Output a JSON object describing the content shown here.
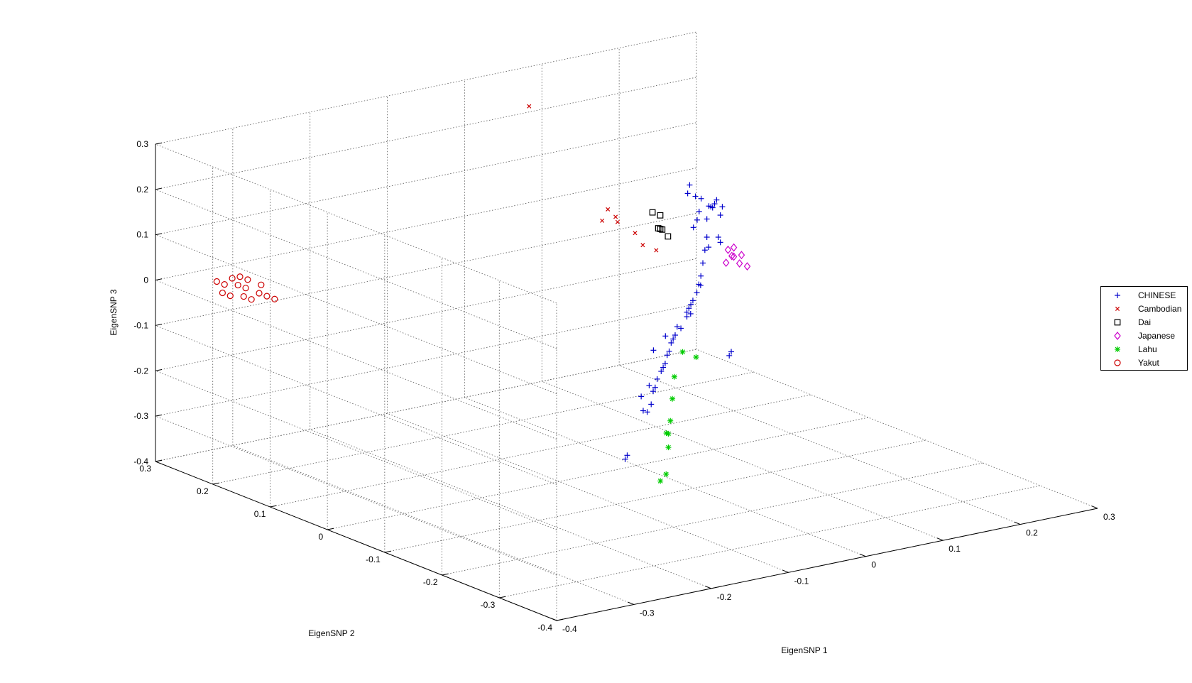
{
  "chart_data": {
    "type": "scatter",
    "title": "",
    "xlabel": "EigenSNP 1",
    "ylabel": "EigenSNP 2",
    "zlabel": "EigenSNP 3",
    "xlim": [
      -0.4,
      0.3
    ],
    "ylim": [
      -0.4,
      0.3
    ],
    "zlim": [
      -0.4,
      0.3
    ],
    "xticks": [
      "-0.4",
      "-0.3",
      "-0.2",
      "-0.1",
      "0",
      "0.1",
      "0.2",
      "0.3"
    ],
    "yticks": [
      "-0.4",
      "-0.3",
      "-0.2",
      "-0.1",
      "0",
      "0.1",
      "0.2",
      "0.3"
    ],
    "zticks": [
      "-0.4",
      "-0.3",
      "-0.2",
      "-0.1",
      "0",
      "0.1",
      "0.2",
      "0.3"
    ],
    "grid": true,
    "legend_position": "outside-right",
    "series": [
      {
        "name": "CHINESE",
        "marker": "+",
        "color": "#0000CC",
        "points": [
          [
            0.17,
            0.12,
            0.04
          ],
          [
            0.18,
            0.11,
            0.05
          ],
          [
            0.18,
            0.13,
            0.06
          ],
          [
            0.19,
            0.12,
            0.05
          ],
          [
            0.19,
            0.13,
            0.04
          ],
          [
            0.17,
            0.14,
            0.07
          ],
          [
            0.18,
            0.14,
            0.06
          ],
          [
            0.2,
            0.13,
            0.05
          ],
          [
            0.2,
            0.12,
            0.04
          ],
          [
            0.19,
            0.11,
            0.03
          ],
          [
            0.18,
            0.12,
            0.02
          ],
          [
            0.2,
            0.14,
            0.03
          ],
          [
            0.17,
            0.13,
            0.0
          ],
          [
            0.18,
            0.12,
            -0.02
          ],
          [
            0.19,
            0.11,
            -0.03
          ],
          [
            0.17,
            0.11,
            -0.04
          ],
          [
            0.16,
            0.1,
            -0.06
          ],
          [
            0.15,
            0.09,
            -0.08
          ],
          [
            0.14,
            0.08,
            -0.09
          ],
          [
            0.13,
            0.07,
            -0.1
          ],
          [
            0.11,
            0.05,
            -0.1
          ],
          [
            0.1,
            0.04,
            -0.1
          ],
          [
            0.09,
            0.03,
            -0.1
          ],
          [
            0.08,
            0.02,
            -0.11
          ],
          [
            0.06,
            0.01,
            -0.12
          ],
          [
            0.05,
            0.0,
            -0.13
          ],
          [
            0.04,
            -0.01,
            -0.13
          ],
          [
            0.03,
            -0.02,
            -0.13
          ],
          [
            0.02,
            -0.03,
            -0.14
          ],
          [
            0.01,
            -0.04,
            -0.14
          ],
          [
            0.0,
            -0.05,
            -0.15
          ],
          [
            -0.01,
            -0.06,
            -0.15
          ],
          [
            -0.02,
            -0.07,
            -0.15
          ],
          [
            -0.04,
            -0.09,
            -0.15
          ],
          [
            -0.05,
            -0.1,
            -0.16
          ],
          [
            -0.06,
            -0.11,
            -0.16
          ],
          [
            0.07,
            0.0,
            -0.09
          ],
          [
            0.05,
            -0.01,
            -0.11
          ],
          [
            0.12,
            0.05,
            -0.07
          ],
          [
            0.16,
            0.09,
            -0.02
          ],
          [
            0.18,
            0.1,
            -0.01
          ],
          [
            -0.07,
            -0.12,
            -0.18
          ],
          [
            -0.09,
            -0.14,
            -0.18
          ],
          [
            -0.11,
            -0.16,
            -0.16
          ],
          [
            -0.12,
            -0.17,
            -0.12
          ],
          [
            -0.08,
            -0.13,
            -0.13
          ],
          [
            0.03,
            -0.01,
            -0.12
          ],
          [
            -0.03,
            -0.07,
            -0.1
          ],
          [
            -0.2,
            -0.25,
            -0.19
          ],
          [
            -0.19,
            -0.24,
            -0.19
          ],
          [
            0.12,
            0.0,
            -0.2
          ],
          [
            0.13,
            0.01,
            -0.2
          ],
          [
            0.08,
            0.02,
            -0.1
          ],
          [
            0.16,
            0.11,
            0.03
          ],
          [
            0.18,
            0.15,
            0.08
          ]
        ]
      },
      {
        "name": "Cambodian",
        "marker": "x",
        "color": "#CC0000",
        "points": [
          [
            -0.05,
            0.12,
            0.35
          ],
          [
            0.0,
            0.05,
            0.14
          ],
          [
            0.01,
            0.05,
            0.12
          ],
          [
            0.0,
            0.06,
            0.11
          ],
          [
            0.02,
            0.06,
            0.1
          ],
          [
            0.05,
            0.07,
            0.06
          ],
          [
            0.06,
            0.07,
            0.03
          ],
          [
            0.07,
            0.06,
            0.02
          ]
        ]
      },
      {
        "name": "Dai",
        "marker": "square",
        "color": "#000000",
        "points": [
          [
            0.08,
            0.08,
            0.09
          ],
          [
            0.09,
            0.08,
            0.08
          ],
          [
            0.08,
            0.07,
            0.06
          ],
          [
            0.09,
            0.08,
            0.05
          ],
          [
            0.1,
            0.09,
            0.04
          ],
          [
            0.1,
            0.08,
            0.03
          ]
        ]
      },
      {
        "name": "Japanese",
        "marker": "diamond",
        "color": "#CC00CC",
        "points": [
          [
            0.19,
            0.09,
            -0.05
          ],
          [
            0.2,
            0.1,
            -0.06
          ],
          [
            0.2,
            0.09,
            -0.07
          ],
          [
            0.21,
            0.1,
            -0.06
          ],
          [
            0.2,
            0.11,
            -0.05
          ],
          [
            0.19,
            0.1,
            -0.07
          ],
          [
            0.21,
            0.09,
            -0.08
          ],
          [
            0.2,
            0.1,
            -0.04
          ]
        ]
      },
      {
        "name": "Lahu",
        "marker": "*",
        "color": "#00CC00",
        "points": [
          [
            -0.04,
            -0.12,
            -0.13
          ],
          [
            -0.05,
            -0.13,
            -0.17
          ],
          [
            -0.06,
            -0.14,
            -0.21
          ],
          [
            -0.07,
            -0.15,
            -0.23
          ],
          [
            -0.08,
            -0.16,
            -0.22
          ],
          [
            -0.07,
            -0.15,
            -0.26
          ],
          [
            -0.11,
            -0.2,
            -0.28
          ],
          [
            -0.11,
            -0.19,
            -0.3
          ],
          [
            0.03,
            -0.04,
            -0.14
          ],
          [
            0.04,
            -0.05,
            -0.15
          ]
        ]
      },
      {
        "name": "Yakut",
        "marker": "o",
        "color": "#CC0000",
        "points": [
          [
            -0.38,
            0.22,
            0.03
          ],
          [
            -0.37,
            0.22,
            0.02
          ],
          [
            -0.36,
            0.22,
            0.03
          ],
          [
            -0.38,
            0.21,
            0.01
          ],
          [
            -0.37,
            0.21,
            0.0
          ],
          [
            -0.36,
            0.21,
            0.02
          ],
          [
            -0.35,
            0.22,
            0.03
          ],
          [
            -0.35,
            0.21,
            0.01
          ],
          [
            -0.34,
            0.22,
            0.02
          ],
          [
            -0.36,
            0.2,
            0.0
          ],
          [
            -0.33,
            0.21,
            0.01
          ],
          [
            -0.34,
            0.2,
            0.0
          ],
          [
            -0.35,
            0.2,
            -0.01
          ],
          [
            -0.33,
            0.2,
            -0.01
          ],
          [
            -0.32,
            0.2,
            -0.02
          ]
        ]
      }
    ]
  }
}
